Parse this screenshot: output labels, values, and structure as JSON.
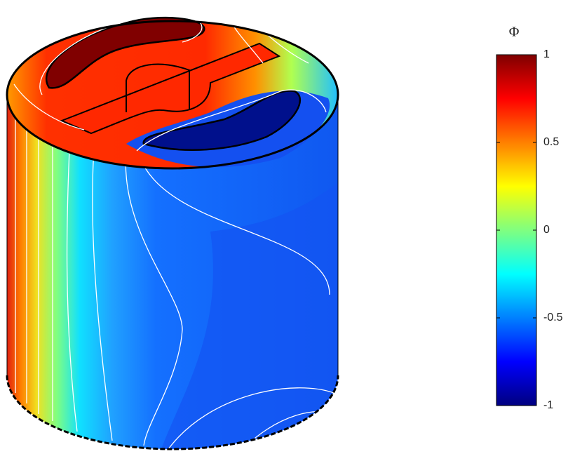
{
  "chart_data": {
    "type": "surface",
    "colorbar_label": "Φ",
    "colormap": "jet",
    "clim": [
      -1,
      1
    ],
    "cticks": [
      -1,
      -0.5,
      0,
      0.5,
      1
    ]
  }
}
